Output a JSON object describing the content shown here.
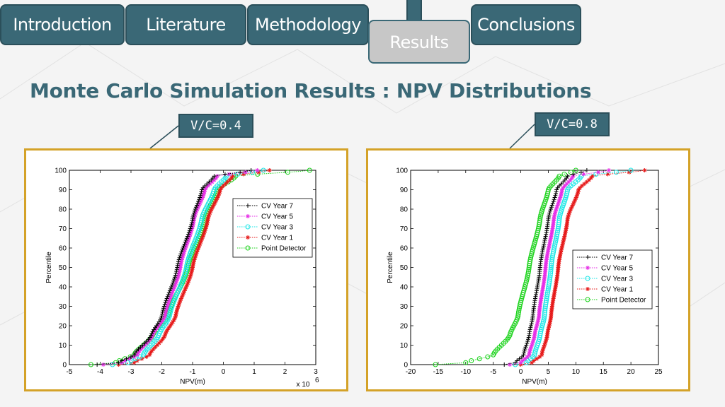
{
  "nav": {
    "tabs": [
      {
        "label": "Introduction",
        "active": false
      },
      {
        "label": "Literature",
        "active": false
      },
      {
        "label": "Methodology",
        "active": false
      },
      {
        "label": "Results",
        "active": true
      },
      {
        "label": "Conclusions",
        "active": false
      }
    ]
  },
  "slide": {
    "title": "Monte Carlo Simulation Results : NPV Distributions"
  },
  "colors": {
    "accent": "#3a6876",
    "panel_border": "#d4a228",
    "active_tab": "#c7c7c7"
  },
  "chart_data": [
    {
      "type": "line",
      "callout": "V/C=0.4",
      "xlabel": "NPV(m)",
      "ylabel": "Percentile",
      "xlim": [
        -5,
        3
      ],
      "ylim": [
        0,
        100
      ],
      "x_ticks": [
        "-5",
        "-4",
        "-3",
        "-2",
        "-1",
        "0",
        "1",
        "2",
        "3"
      ],
      "y_ticks": [
        "0",
        "10",
        "20",
        "30",
        "40",
        "50",
        "60",
        "70",
        "80",
        "90",
        "100"
      ],
      "x_multiplier": "x 10",
      "x_multiplier_exp": "6",
      "legend_position": "top-right",
      "grid": false,
      "series": [
        {
          "name": "CV Year 7",
          "color": "#000000",
          "marker": "+",
          "percentiles": [
            [
              0,
              -4.1
            ],
            [
              1,
              -3.4
            ],
            [
              5,
              -2.9
            ],
            [
              15,
              -2.35
            ],
            [
              25,
              -2.0
            ],
            [
              50,
              -1.5
            ],
            [
              75,
              -1.0
            ],
            [
              90,
              -0.7
            ],
            [
              97,
              -0.3
            ],
            [
              100,
              0.9
            ]
          ]
        },
        {
          "name": "CV Year 5",
          "color": "#e62ee6",
          "marker": "*",
          "percentiles": [
            [
              0,
              -3.9
            ],
            [
              1,
              -3.3
            ],
            [
              5,
              -2.8
            ],
            [
              15,
              -2.3
            ],
            [
              25,
              -1.9
            ],
            [
              50,
              -1.4
            ],
            [
              75,
              -0.95
            ],
            [
              90,
              -0.6
            ],
            [
              97,
              -0.2
            ],
            [
              100,
              1.1
            ]
          ]
        },
        {
          "name": "CV Year 3",
          "color": "#19e6e6",
          "marker": "o",
          "percentiles": [
            [
              0,
              -3.6
            ],
            [
              1,
              -3.1
            ],
            [
              5,
              -2.6
            ],
            [
              15,
              -2.1
            ],
            [
              25,
              -1.75
            ],
            [
              50,
              -1.2
            ],
            [
              75,
              -0.7
            ],
            [
              90,
              -0.3
            ],
            [
              97,
              0.1
            ],
            [
              100,
              1.3
            ]
          ]
        },
        {
          "name": "CV Year 1",
          "color": "#e61919",
          "marker": "*",
          "percentiles": [
            [
              0,
              -3.4
            ],
            [
              1,
              -2.9
            ],
            [
              5,
              -2.4
            ],
            [
              15,
              -1.9
            ],
            [
              25,
              -1.55
            ],
            [
              50,
              -1.0
            ],
            [
              75,
              -0.5
            ],
            [
              90,
              -0.1
            ],
            [
              97,
              0.3
            ],
            [
              100,
              1.5
            ]
          ]
        },
        {
          "name": "Point Detector",
          "color": "#19d219",
          "marker": "o",
          "percentiles": [
            [
              0,
              -4.3
            ],
            [
              1,
              -3.5
            ],
            [
              5,
              -2.9
            ],
            [
              15,
              -2.3
            ],
            [
              25,
              -1.8
            ],
            [
              50,
              -1.15
            ],
            [
              75,
              -0.6
            ],
            [
              90,
              -0.2
            ],
            [
              97,
              0.4
            ],
            [
              100,
              2.8
            ]
          ]
        }
      ]
    },
    {
      "type": "line",
      "callout": "V/C=0.8",
      "xlabel": "NPV(m)",
      "ylabel": "Percentile",
      "xlim": [
        -20,
        25
      ],
      "ylim": [
        0,
        100
      ],
      "x_ticks": [
        "-20",
        "-15",
        "-10",
        "-5",
        "0",
        "5",
        "10",
        "15",
        "20",
        "25"
      ],
      "y_ticks": [
        "0",
        "10",
        "20",
        "30",
        "40",
        "50",
        "60",
        "70",
        "80",
        "90",
        "100"
      ],
      "legend_position": "center-right",
      "grid": false,
      "series": [
        {
          "name": "CV Year 7",
          "color": "#000000",
          "marker": "+",
          "percentiles": [
            [
              0,
              -3
            ],
            [
              1,
              -1
            ],
            [
              5,
              0.5
            ],
            [
              15,
              1.5
            ],
            [
              25,
              2.2
            ],
            [
              50,
              3.5
            ],
            [
              75,
              5.0
            ],
            [
              90,
              6.5
            ],
            [
              97,
              8.5
            ],
            [
              100,
              12
            ]
          ]
        },
        {
          "name": "CV Year 5",
          "color": "#e62ee6",
          "marker": "*",
          "percentiles": [
            [
              0,
              -2
            ],
            [
              1,
              0
            ],
            [
              5,
              1.5
            ],
            [
              15,
              2.5
            ],
            [
              25,
              3.3
            ],
            [
              50,
              4.5
            ],
            [
              75,
              6.0
            ],
            [
              90,
              7.5
            ],
            [
              97,
              9.5
            ],
            [
              100,
              16
            ]
          ]
        },
        {
          "name": "CV Year 3",
          "color": "#19e6e6",
          "marker": "o",
          "percentiles": [
            [
              0,
              -1
            ],
            [
              1,
              1
            ],
            [
              5,
              2.5
            ],
            [
              15,
              3.5
            ],
            [
              25,
              4.3
            ],
            [
              50,
              5.5
            ],
            [
              75,
              7.0
            ],
            [
              90,
              8.5
            ],
            [
              97,
              11
            ],
            [
              100,
              20
            ]
          ]
        },
        {
          "name": "CV Year 1",
          "color": "#e61919",
          "marker": "*",
          "percentiles": [
            [
              0,
              0
            ],
            [
              1,
              2
            ],
            [
              5,
              3.8
            ],
            [
              15,
              4.8
            ],
            [
              25,
              5.5
            ],
            [
              50,
              6.8
            ],
            [
              75,
              8.5
            ],
            [
              90,
              10.5
            ],
            [
              97,
              13
            ],
            [
              100,
              22.5
            ]
          ]
        },
        {
          "name": "Point Detector",
          "color": "#19d219",
          "marker": "o",
          "percentiles": [
            [
              0,
              -15.5
            ],
            [
              1,
              -10
            ],
            [
              5,
              -5
            ],
            [
              15,
              -2
            ],
            [
              25,
              -0.5
            ],
            [
              50,
              1.5
            ],
            [
              75,
              3.5
            ],
            [
              90,
              5.0
            ],
            [
              97,
              7.0
            ],
            [
              100,
              10
            ]
          ]
        }
      ]
    }
  ]
}
